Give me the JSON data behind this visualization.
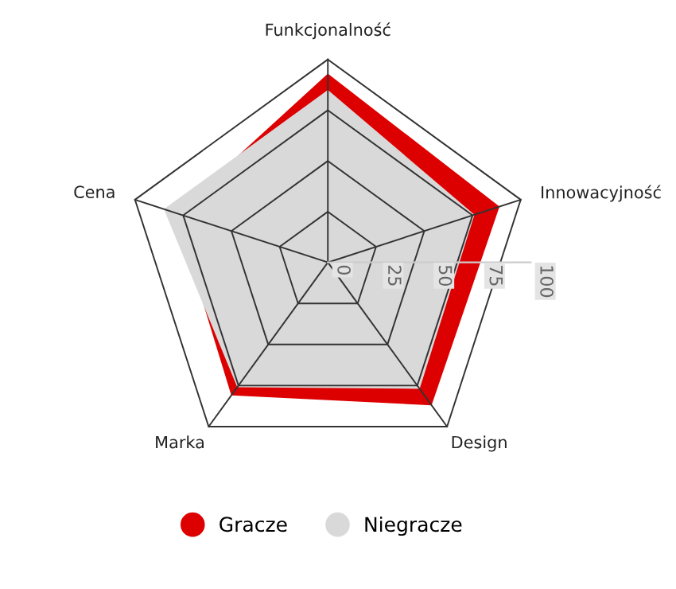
{
  "chart_data": {
    "type": "radar",
    "categories": [
      "Funkcjonalność",
      "Innowacyjność",
      "Design",
      "Marka",
      "Cena"
    ],
    "ylim": [
      0,
      100
    ],
    "yticks": [
      0,
      25,
      50,
      75,
      100
    ],
    "series": [
      {
        "name": "Gracze",
        "color": "#dd0000",
        "values": [
          93,
          89,
          87,
          81,
          79
        ]
      },
      {
        "name": "Niegracze",
        "color": "#d9d9d9",
        "values": [
          85,
          76,
          77,
          76,
          85
        ]
      }
    ],
    "legend": "bottom",
    "grid": true
  }
}
